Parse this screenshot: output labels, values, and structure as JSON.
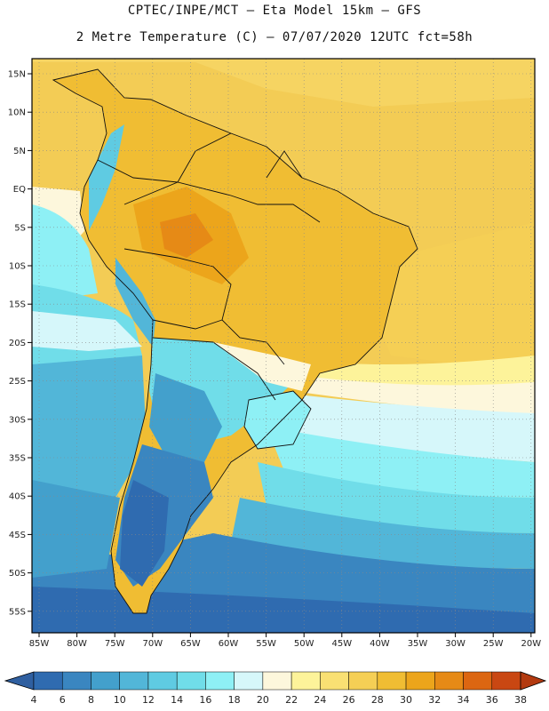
{
  "header": {
    "line1": "CPTEC/INPE/MCT –  Eta Model 15km – GFS",
    "line2": "2 Metre Temperature (C) – 07/07/2020 12UTC fct=58h"
  },
  "axes": {
    "lon_labels": [
      "85W",
      "80W",
      "75W",
      "70W",
      "65W",
      "60W",
      "55W",
      "50W",
      "45W",
      "40W",
      "35W",
      "30W",
      "25W",
      "20W"
    ],
    "lat_labels": [
      "15N",
      "10N",
      "5N",
      "EQ",
      "5S",
      "10S",
      "15S",
      "20S",
      "25S",
      "30S",
      "35S",
      "40S",
      "45S",
      "50S",
      "55S"
    ]
  },
  "colorbar": {
    "ticks": [
      "4",
      "6",
      "8",
      "10",
      "12",
      "14",
      "16",
      "18",
      "20",
      "22",
      "24",
      "26",
      "28",
      "30",
      "32",
      "34",
      "36",
      "38"
    ],
    "colors": [
      "#2f6bb0",
      "#3a86c0",
      "#43a0cc",
      "#52b6d8",
      "#5fcbe2",
      "#70dde9",
      "#8ef0f5",
      "#d6f7fa",
      "#fdf7dc",
      "#fdf39a",
      "#f9e073",
      "#f5cf55",
      "#f0bd33",
      "#eca51b",
      "#e68a16",
      "#dc6611",
      "#c94712"
    ],
    "under_color": "#2f5fa0",
    "over_color": "#b33a10"
  },
  "map": {
    "ocean_colors": {
      "north_atlantic": "#f3cc55",
      "tropical": "#f0bd33",
      "warm_band": "#fdf39a",
      "mild": "#fdf7dc",
      "cool": "#8ef0f5",
      "cold": "#52b6d8",
      "colder": "#3a86c0",
      "coldest": "#2f6bb0"
    }
  }
}
